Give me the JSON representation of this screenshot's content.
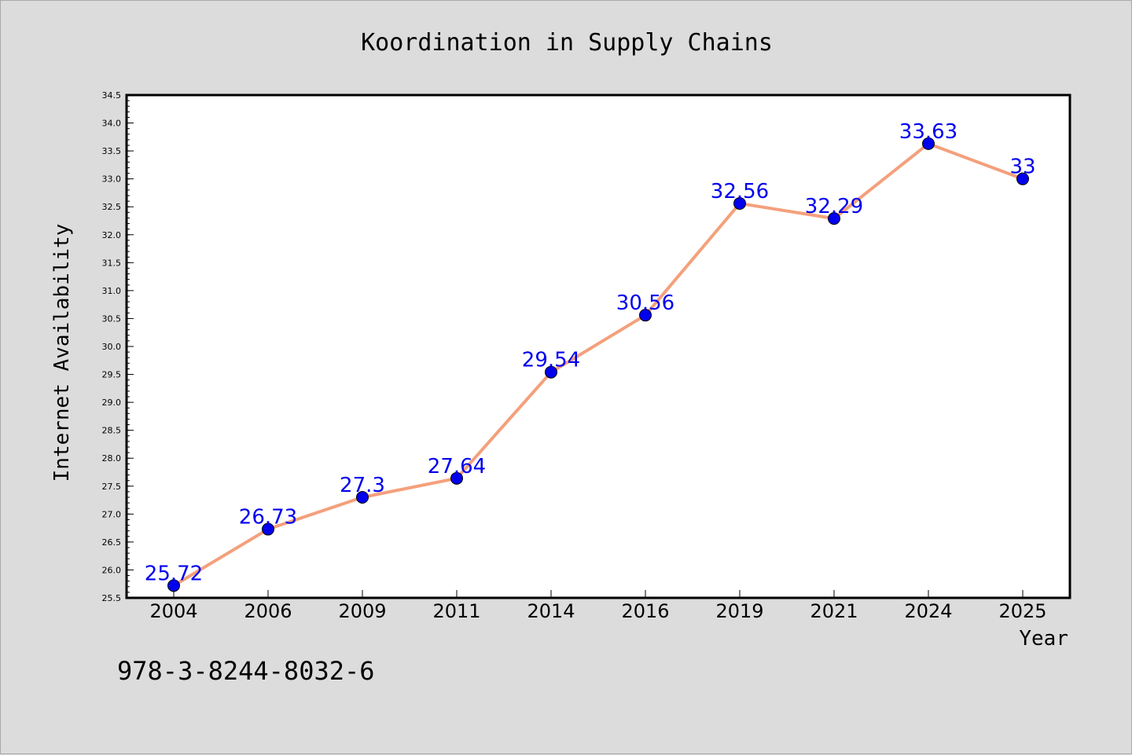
{
  "chart_data": {
    "type": "line",
    "title": "Koordination in Supply Chains",
    "xlabel": "Year",
    "ylabel": "Internet Availability",
    "categories": [
      "2004",
      "2006",
      "2009",
      "2011",
      "2014",
      "2016",
      "2019",
      "2021",
      "2024",
      "2025"
    ],
    "series": [
      {
        "values": [
          25.72,
          26.73,
          27.3,
          27.64,
          29.54,
          30.56,
          32.56,
          32.29,
          33.63,
          33
        ],
        "data_labels": [
          "25.72",
          "26.73",
          "27.3",
          "27.64",
          "29.54",
          "30.56",
          "32.56",
          "32.29",
          "33.63",
          "33"
        ]
      }
    ],
    "ylim": [
      25.5,
      34.5
    ],
    "yticks": [
      "25.5",
      "26.0",
      "26.5",
      "27.0",
      "27.5",
      "28.0",
      "28.5",
      "29.0",
      "29.5",
      "30.0",
      "30.5",
      "31.0",
      "31.5",
      "32.0",
      "32.5",
      "33.0",
      "33.5",
      "34.0",
      "34.5"
    ],
    "grid": false,
    "line_color": "#f4a07c",
    "marker_color": "#0000ee",
    "label_color": "#0000ee",
    "plot_background": "#ffffff",
    "page_background": "#dcdcdc"
  },
  "footer_text": "978-3-8244-8032-6"
}
